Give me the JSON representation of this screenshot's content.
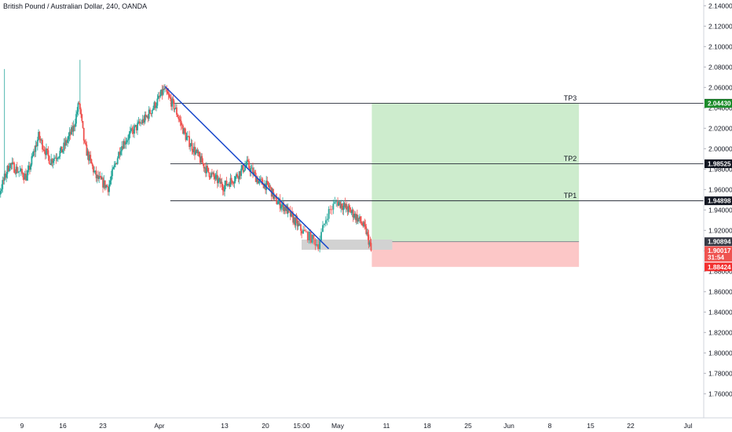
{
  "title": "British Pound / Australian Dollar, 240, OANDA",
  "colors": {
    "up": "#26a69a",
    "down": "#ef5350",
    "trendline": "#1848cc",
    "profit_zone": "#cdeccd",
    "stop_zone": "#fcc7c7",
    "support_zone": "#d2d2d2",
    "axis_text": "#131722",
    "level_line": "#787b86"
  },
  "chart_data": {
    "type": "candlestick",
    "title": "British Pound / Australian Dollar, 240, OANDA",
    "ylim": [
      1.745,
      2.152
    ],
    "y_ticks": [
      "2.14000",
      "2.12000",
      "2.10000",
      "2.08000",
      "2.06000",
      "2.04000",
      "2.02000",
      "2.00000",
      "1.98000",
      "1.96000",
      "1.94000",
      "1.92000",
      "1.90000",
      "1.88000",
      "1.86000",
      "1.84000",
      "1.82000",
      "1.80000",
      "1.78000",
      "1.76000"
    ],
    "x_ticks": [
      "9",
      "16",
      "23",
      "Apr",
      "13",
      "20",
      "15:00",
      "May",
      "11",
      "18",
      "25",
      "Jun",
      "8",
      "15",
      "22",
      "Jul"
    ],
    "price_series": [
      {
        "t": "Mar 2",
        "p": 1.928
      },
      {
        "t": "Mar 5",
        "p": 1.952
      },
      {
        "t": "Mar 7",
        "p": 1.985
      },
      {
        "t": "Mar 10",
        "p": 1.972
      },
      {
        "t": "Mar 12",
        "p": 2.012
      },
      {
        "t": "Mar 14",
        "p": 1.988
      },
      {
        "t": "Mar 16",
        "p": 1.998
      },
      {
        "t": "Mar 18",
        "p": 2.02
      },
      {
        "t": "Mar 19",
        "p": 2.045
      },
      {
        "t": "Mar 20",
        "p": 2.002
      },
      {
        "t": "Mar 22",
        "p": 1.972
      },
      {
        "t": "Mar 24",
        "p": 1.962
      },
      {
        "t": "Mar 26",
        "p": 2.002
      },
      {
        "t": "Mar 28",
        "p": 2.018
      },
      {
        "t": "Mar 30",
        "p": 2.03
      },
      {
        "t": "Apr 1",
        "p": 2.048
      },
      {
        "t": "Apr 2",
        "p": 2.058
      },
      {
        "t": "Apr 4",
        "p": 2.04
      },
      {
        "t": "Apr 6",
        "p": 2.012
      },
      {
        "t": "Apr 8",
        "p": 1.995
      },
      {
        "t": "Apr 10",
        "p": 1.978
      },
      {
        "t": "Apr 13",
        "p": 1.963
      },
      {
        "t": "Apr 15",
        "p": 1.972
      },
      {
        "t": "Apr 17",
        "p": 1.985
      },
      {
        "t": "Apr 19",
        "p": 1.968
      },
      {
        "t": "Apr 21",
        "p": 1.962
      },
      {
        "t": "Apr 22",
        "p": 1.95
      },
      {
        "t": "Apr 24",
        "p": 1.942
      },
      {
        "t": "Apr 26",
        "p": 1.928
      },
      {
        "t": "Apr 28",
        "p": 1.914
      },
      {
        "t": "Apr 29",
        "p": 1.906
      },
      {
        "t": "Apr 30",
        "p": 1.936
      },
      {
        "t": "May 1",
        "p": 1.948
      },
      {
        "t": "May 2",
        "p": 1.945
      },
      {
        "t": "May 4",
        "p": 1.938
      },
      {
        "t": "May 6",
        "p": 1.928
      },
      {
        "t": "May 7",
        "p": 1.919
      },
      {
        "t": "May 8",
        "p": 1.902
      }
    ],
    "trendline": {
      "from": {
        "t": "Apr 2",
        "p": 2.061
      },
      "to": {
        "t": "Apr 30",
        "p": 1.902
      }
    },
    "support_zone": {
      "from": "Apr 27",
      "to": "May 12",
      "low": 1.901,
      "high": 1.911
    },
    "position": {
      "from": "May 8",
      "to": "Jun 13",
      "entry": 1.90894,
      "stop": 1.88424,
      "tp_top": 2.04451
    },
    "levels": [
      {
        "label": "TP3",
        "price": 2.04451,
        "price_label": "2.04451"
      },
      {
        "label": "TP2",
        "price": 1.98525,
        "price_label": "1.98525"
      },
      {
        "label": "TP1",
        "price": 1.94898,
        "price_label": "1.94898"
      }
    ],
    "price_tags": [
      {
        "price": 2.0443,
        "text": "2.04430",
        "color": "#1b8b2a"
      },
      {
        "price": 1.90894,
        "text": "1.90894",
        "color": "#363a45"
      },
      {
        "price": 1.90017,
        "text": "1.90017",
        "color": "#ef5350"
      },
      {
        "price": 1.8936,
        "text": "31:54",
        "color": "#ef5350"
      },
      {
        "price": 1.88424,
        "text": "1.88424",
        "color": "#f23030"
      }
    ]
  }
}
